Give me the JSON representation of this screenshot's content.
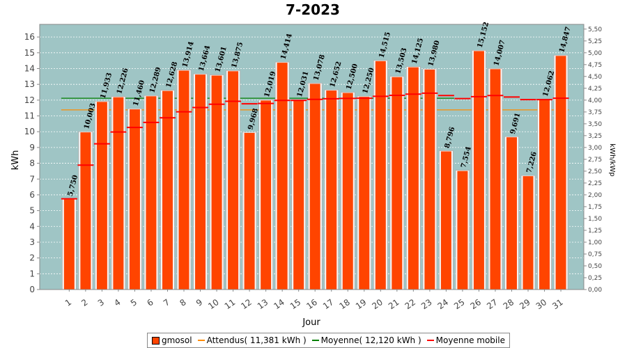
{
  "chart_data": {
    "type": "bar",
    "title": "7-2023",
    "xlabel": "Jour",
    "ylabel": "kWh",
    "y2label": "kWh/kWp",
    "ylim": [
      0,
      16.8
    ],
    "y2lim": [
      0,
      5.6
    ],
    "yticks": [
      "0",
      "1",
      "2",
      "3",
      "4",
      "5",
      "6",
      "7",
      "8",
      "9",
      "10",
      "11",
      "12",
      "13",
      "14",
      "15",
      "16"
    ],
    "y2ticks": [
      "0,00",
      "0,25",
      "0,50",
      "0,75",
      "1,00",
      "1,25",
      "1,50",
      "1,75",
      "2,00",
      "2,25",
      "2,50",
      "2,75",
      "3,00",
      "3,25",
      "3,50",
      "3,75",
      "4,00",
      "4,25",
      "4,50",
      "4,75",
      "5,00",
      "5,25",
      "5,50"
    ],
    "categories": [
      "1",
      "2",
      "3",
      "4",
      "5",
      "6",
      "7",
      "8",
      "9",
      "10",
      "11",
      "12",
      "13",
      "14",
      "15",
      "16",
      "17",
      "18",
      "19",
      "20",
      "21",
      "22",
      "23",
      "24",
      "25",
      "26",
      "27",
      "28",
      "29",
      "30",
      "31"
    ],
    "series": [
      {
        "name": "gmosol",
        "values": [
          5.75,
          10.003,
          11.933,
          12.226,
          11.46,
          12.289,
          12.628,
          13.914,
          13.664,
          13.601,
          13.875,
          9.968,
          12.019,
          14.414,
          12.031,
          13.078,
          12.652,
          12.5,
          12.25,
          14.515,
          13.503,
          14.125,
          13.98,
          8.796,
          7.554,
          15.152,
          14.007,
          9.691,
          7.226,
          12.062,
          14.847
        ],
        "labels": [
          "5,750",
          "10,003",
          "11,933",
          "12,226",
          "11,460",
          "12,289",
          "12,628",
          "13,914",
          "13,664",
          "13,601",
          "13,875",
          "9,968",
          "12,019",
          "14,414",
          "12,031",
          "13,078",
          "12,652",
          "12,500",
          "12,250",
          "14,515",
          "13,503",
          "14,125",
          "13,980",
          "8,796",
          "7,554",
          "15,152",
          "14,007",
          "9,691",
          "7,226",
          "12,062",
          "14,847"
        ],
        "color": "#ff4400"
      },
      {
        "name": "Moyenne mobile",
        "values": [
          5.75,
          7.88,
          9.23,
          9.98,
          10.27,
          10.59,
          10.88,
          11.26,
          11.53,
          11.74,
          11.93,
          11.77,
          11.79,
          11.98,
          11.98,
          12.05,
          12.09,
          12.11,
          12.12,
          12.24,
          12.3,
          12.38,
          12.44,
          12.29,
          12.1,
          12.22,
          12.29,
          12.2,
          12.03,
          12.03,
          12.12
        ],
        "color": "#ff0000"
      }
    ],
    "attendus": {
      "value": 11.381,
      "label": "Attendus( 11,381 kWh )",
      "color": "#ff8c00",
      "days": [
        1,
        31
      ]
    },
    "moyenne": {
      "value": 12.12,
      "label": "Moyenne( 12,120 kWh )",
      "color": "#008000",
      "days": [
        1,
        24
      ]
    },
    "plot_background": "#9fc5c5",
    "grid": true,
    "legend_position": "bottom"
  }
}
